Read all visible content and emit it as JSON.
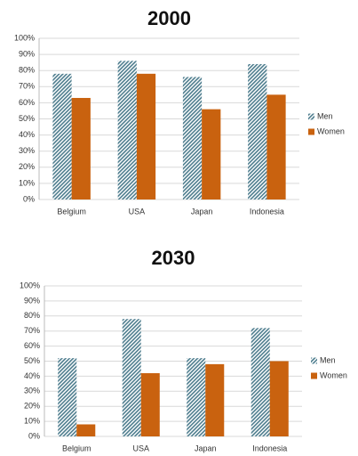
{
  "chart_data": [
    {
      "type": "bar",
      "title": "2000",
      "categories": [
        "Belgium",
        "USA",
        "Japan",
        "Indonesia"
      ],
      "series": [
        {
          "name": "Men",
          "color": "#4e7d8e",
          "pattern": "diagonal",
          "values": [
            78,
            86,
            76,
            84
          ]
        },
        {
          "name": "Women",
          "color": "#c9620f",
          "values": [
            63,
            78,
            56,
            65
          ]
        }
      ],
      "ylim": [
        0,
        100
      ],
      "yticks": [
        {
          "value": 0,
          "label": "0%"
        },
        {
          "value": 10,
          "label": "10%"
        },
        {
          "value": 20,
          "label": "20%"
        },
        {
          "value": 30,
          "label": "30%"
        },
        {
          "value": 40,
          "label": "40%"
        },
        {
          "value": 50,
          "label": "50%"
        },
        {
          "value": 60,
          "label": "60%"
        },
        {
          "value": 70,
          "label": "70%"
        },
        {
          "value": 80,
          "label": "80%"
        },
        {
          "value": 90,
          "label": "90%"
        },
        {
          "value": 100,
          "label": "100%"
        }
      ],
      "grid": true,
      "legend": "right"
    },
    {
      "type": "bar",
      "title": "2030",
      "categories": [
        "Belgium",
        "USA",
        "Japan",
        "Indonesia"
      ],
      "series": [
        {
          "name": "Men",
          "color": "#4e7d8e",
          "pattern": "diagonal",
          "values": [
            52,
            78,
            52,
            72
          ]
        },
        {
          "name": "Women",
          "color": "#c9620f",
          "values": [
            8,
            42,
            48,
            50
          ]
        }
      ],
      "ylim": [
        0,
        100
      ],
      "yticks": [
        {
          "value": 0,
          "label": "0%"
        },
        {
          "value": 10,
          "label": "10%"
        },
        {
          "value": 20,
          "label": "20%"
        },
        {
          "value": 30,
          "label": "30%"
        },
        {
          "value": 40,
          "label": "40%"
        },
        {
          "value": 50,
          "label": "50%"
        },
        {
          "value": 60,
          "label": "60%"
        },
        {
          "value": 70,
          "label": "70%"
        },
        {
          "value": 80,
          "label": "80%"
        },
        {
          "value": 90,
          "label": "90%"
        },
        {
          "value": 100,
          "label": "100%"
        }
      ],
      "grid": true,
      "legend": "right"
    }
  ]
}
